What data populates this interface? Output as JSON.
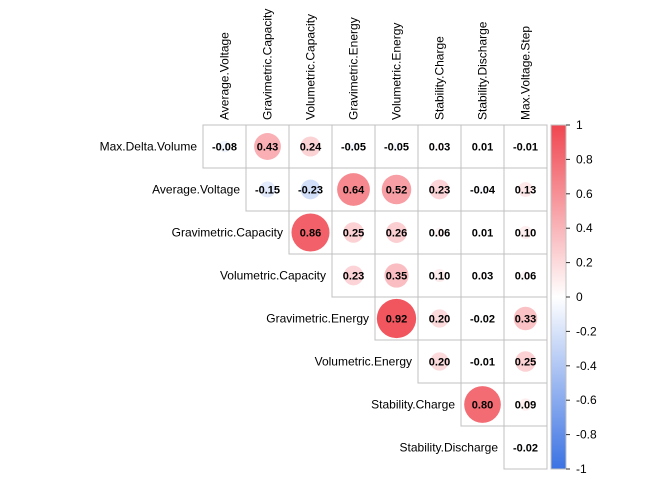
{
  "chart_data": {
    "type": "heatmap",
    "variables": [
      "Max.Delta.Volume",
      "Average.Voltage",
      "Gravimetric.Capacity",
      "Volumetric.Capacity",
      "Gravimetric.Energy",
      "Volumetric.Energy",
      "Stability.Charge",
      "Stability.Discharge",
      "Max.Voltage.Step"
    ],
    "row_labels": [
      "Max.Delta.Volume",
      "Average.Voltage",
      "Gravimetric.Capacity",
      "Volumetric.Capacity",
      "Gravimetric.Energy",
      "Volumetric.Energy",
      "Stability.Charge",
      "Stability.Discharge"
    ],
    "column_labels": [
      "Average.Voltage",
      "Gravimetric.Capacity",
      "Volumetric.Capacity",
      "Gravimetric.Energy",
      "Volumetric.Energy",
      "Stability.Charge",
      "Stability.Discharge",
      "Max.Voltage.Step"
    ],
    "matrix": [
      [
        "-0.08",
        "0.43",
        "0.24",
        "-0.05",
        "-0.05",
        "0.03",
        "0.01",
        "-0.01"
      ],
      [
        "-0.15",
        "-0.23",
        "0.64",
        "0.52",
        "0.23",
        "-0.04",
        "0.13"
      ],
      [
        "0.86",
        "0.25",
        "0.26",
        "0.06",
        "0.01",
        "0.10"
      ],
      [
        "0.23",
        "0.35",
        "0.10",
        "0.03",
        "0.06"
      ],
      [
        "0.92",
        "0.20",
        "-0.02",
        "0.33"
      ],
      [
        "0.20",
        "-0.01",
        "0.25"
      ],
      [
        "0.80",
        "0.09"
      ],
      [
        "-0.02"
      ]
    ],
    "shape": "upper-triangle",
    "glyph": "circle-size-and-color",
    "color_scale": {
      "low": "#3B72E3",
      "mid": "#FFFFFF",
      "high": "#F04650"
    },
    "legend_ticks": [
      "1",
      "0.8",
      "0.6",
      "0.4",
      "0.2",
      "0",
      "-0.2",
      "-0.4",
      "-0.6",
      "-0.8",
      "-1"
    ],
    "legend_range": [
      -1,
      1
    ],
    "legend_position": "right"
  }
}
